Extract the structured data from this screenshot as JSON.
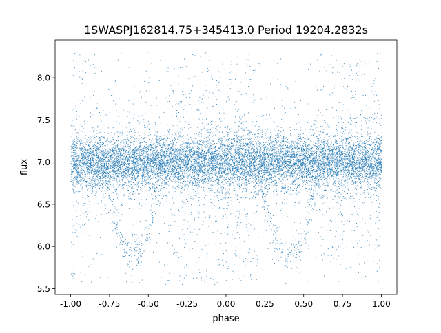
{
  "chart_data": {
    "type": "scatter",
    "title": "1SWASPJ162814.75+345413.0 Period 19204.2832s",
    "xlabel": "phase",
    "ylabel": "flux",
    "xlim": [
      -1.1,
      1.1
    ],
    "ylim": [
      5.43,
      8.45
    ],
    "x_ticks": [
      "-1.00",
      "-0.75",
      "-0.50",
      "-0.25",
      "0.00",
      "0.25",
      "0.50",
      "0.75",
      "1.00"
    ],
    "y_ticks": [
      "5.5",
      "6.0",
      "6.5",
      "7.0",
      "7.5",
      "8.0"
    ],
    "grid": false,
    "legend": "none",
    "marker_color": "#1f77b4",
    "series": [
      {
        "description_of_distribution": {
          "phase_range": [
            -1.0,
            1.0
          ],
          "baseline_flux": 7.0,
          "baseline_scatter": 0.15,
          "eclipse_phases": [
            -0.6,
            0.4
          ],
          "eclipse_min_flux": 5.9,
          "outlier_flux_range": [
            5.55,
            8.3
          ]
        }
      }
    ]
  }
}
